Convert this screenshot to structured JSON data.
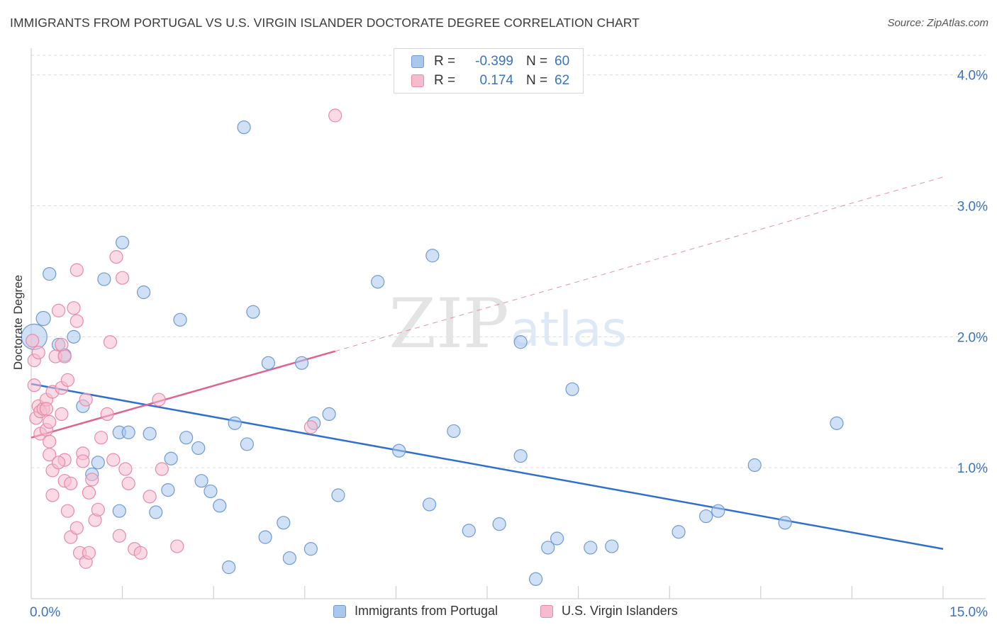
{
  "header": {
    "title": "IMMIGRANTS FROM PORTUGAL VS U.S. VIRGIN ISLANDER DOCTORATE DEGREE CORRELATION CHART",
    "source": "Source: ZipAtlas.com"
  },
  "watermark": {
    "zip": "ZIP",
    "atlas": "atlas"
  },
  "colors": {
    "blue_fill": "#aac8ee",
    "blue_stroke": "#6f9ad6",
    "blue_line": "#2f6fd0",
    "pink_fill": "#f6bccd",
    "pink_stroke": "#e98aa7",
    "pink_line": "#e0628d",
    "tick_label": "#3a73c4"
  },
  "legend_top": {
    "rows": [
      {
        "series": "blue",
        "r_label": "R =",
        "r_value": "-0.399",
        "n_label": "N =",
        "n_value": "60"
      },
      {
        "series": "pink",
        "r_label": "R =",
        "r_value": "0.174",
        "n_label": "N =",
        "n_value": "62"
      }
    ]
  },
  "chart_data": {
    "type": "scatter",
    "title": "IMMIGRANTS FROM PORTUGAL VS U.S. VIRGIN ISLANDER DOCTORATE DEGREE CORRELATION CHART",
    "xlabel": "",
    "ylabel": "Doctorate Degree",
    "xlim": [
      0,
      15
    ],
    "ylim": [
      0,
      4.15
    ],
    "x_tick_labels": [
      {
        "value": 0,
        "label": "0.0%"
      },
      {
        "value": 15,
        "label": "15.0%"
      }
    ],
    "y_tick_labels": [
      {
        "value": 1,
        "label": "1.0%"
      },
      {
        "value": 2,
        "label": "2.0%"
      },
      {
        "value": 3,
        "label": "3.0%"
      },
      {
        "value": 4,
        "label": "4.0%"
      }
    ],
    "x_minor_ticks": [
      1.5,
      3.0,
      4.5,
      6.0,
      7.5,
      9.0,
      10.5,
      12.0,
      13.5
    ],
    "grid": true,
    "legend_position": "bottom",
    "series": [
      {
        "name": "Immigrants from Portugal",
        "color": "blue",
        "trend": {
          "x": [
            0,
            15
          ],
          "y": [
            1.64,
            0.38
          ],
          "dashed_extension": false
        },
        "points": [
          [
            0.05,
            2.0,
            18
          ],
          [
            0.2,
            2.14,
            10
          ],
          [
            0.3,
            2.48,
            9
          ],
          [
            0.45,
            1.94,
            9
          ],
          [
            0.55,
            1.86,
            9
          ],
          [
            0.7,
            2.0,
            9
          ],
          [
            0.85,
            1.47,
            9
          ],
          [
            1.0,
            0.95,
            9
          ],
          [
            1.1,
            1.04,
            9
          ],
          [
            1.2,
            2.44,
            9
          ],
          [
            1.45,
            0.67,
            9
          ],
          [
            1.5,
            2.72,
            9
          ],
          [
            1.45,
            1.27,
            9
          ],
          [
            1.6,
            1.27,
            9
          ],
          [
            1.85,
            2.34,
            9
          ],
          [
            1.95,
            1.26,
            9
          ],
          [
            2.05,
            0.66,
            9
          ],
          [
            2.25,
            0.83,
            9
          ],
          [
            2.3,
            1.07,
            9
          ],
          [
            2.45,
            2.13,
            9
          ],
          [
            2.55,
            1.23,
            9
          ],
          [
            2.75,
            1.15,
            9
          ],
          [
            2.8,
            0.9,
            9
          ],
          [
            2.95,
            0.82,
            9
          ],
          [
            3.1,
            0.71,
            9
          ],
          [
            3.25,
            0.24,
            9
          ],
          [
            3.35,
            1.34,
            9
          ],
          [
            3.5,
            3.6,
            9
          ],
          [
            3.55,
            1.18,
            9
          ],
          [
            3.65,
            2.19,
            9
          ],
          [
            3.85,
            0.47,
            9
          ],
          [
            3.9,
            1.8,
            9
          ],
          [
            4.15,
            0.58,
            9
          ],
          [
            4.25,
            0.31,
            9
          ],
          [
            4.45,
            1.8,
            9
          ],
          [
            4.6,
            0.38,
            9
          ],
          [
            4.65,
            1.34,
            9
          ],
          [
            4.9,
            1.41,
            9
          ],
          [
            5.05,
            0.79,
            9
          ],
          [
            5.7,
            2.42,
            9
          ],
          [
            6.05,
            1.13,
            9
          ],
          [
            6.55,
            0.72,
            9
          ],
          [
            6.6,
            2.62,
            9
          ],
          [
            6.95,
            1.28,
            9
          ],
          [
            7.2,
            0.52,
            9
          ],
          [
            7.7,
            0.57,
            9
          ],
          [
            8.05,
            1.09,
            9
          ],
          [
            8.05,
            1.96,
            9
          ],
          [
            8.3,
            0.15,
            9
          ],
          [
            8.5,
            0.39,
            9
          ],
          [
            8.65,
            0.46,
            9
          ],
          [
            8.9,
            1.6,
            9
          ],
          [
            9.2,
            0.39,
            9
          ],
          [
            9.55,
            0.4,
            9
          ],
          [
            10.65,
            0.51,
            9
          ],
          [
            11.1,
            0.63,
            9
          ],
          [
            11.3,
            0.67,
            9
          ],
          [
            11.9,
            1.02,
            9
          ],
          [
            12.4,
            0.58,
            9
          ],
          [
            13.25,
            1.34,
            9
          ]
        ]
      },
      {
        "name": "U.S. Virgin Islanders",
        "color": "pink",
        "trend": {
          "x": [
            0,
            5.0,
            15
          ],
          "y": [
            1.23,
            1.89,
            3.22
          ],
          "dashed_extension": true
        },
        "points": [
          [
            0.02,
            1.97,
            9
          ],
          [
            0.05,
            1.82,
            9
          ],
          [
            0.05,
            1.63,
            9
          ],
          [
            0.08,
            1.38,
            9
          ],
          [
            0.12,
            1.88,
            9
          ],
          [
            0.12,
            1.47,
            9
          ],
          [
            0.15,
            1.43,
            9
          ],
          [
            0.15,
            1.26,
            9
          ],
          [
            0.2,
            1.45,
            9
          ],
          [
            0.25,
            1.29,
            9
          ],
          [
            0.25,
            1.52,
            9
          ],
          [
            0.3,
            1.35,
            9
          ],
          [
            0.3,
            1.2,
            9
          ],
          [
            0.3,
            1.1,
            9
          ],
          [
            0.35,
            1.58,
            9
          ],
          [
            0.35,
            0.98,
            9
          ],
          [
            0.35,
            0.79,
            9
          ],
          [
            0.4,
            1.85,
            9
          ],
          [
            0.45,
            2.2,
            9
          ],
          [
            0.5,
            1.94,
            9
          ],
          [
            0.5,
            1.41,
            9
          ],
          [
            0.5,
            1.61,
            9
          ],
          [
            0.55,
            0.9,
            9
          ],
          [
            0.55,
            1.06,
            9
          ],
          [
            0.6,
            0.67,
            9
          ],
          [
            0.6,
            1.67,
            9
          ],
          [
            0.65,
            0.47,
            9
          ],
          [
            0.65,
            0.88,
            9
          ],
          [
            0.7,
            2.22,
            9
          ],
          [
            0.75,
            2.51,
            9
          ],
          [
            0.75,
            2.12,
            9
          ],
          [
            0.75,
            0.54,
            9
          ],
          [
            0.8,
            0.35,
            9
          ],
          [
            0.85,
            1.11,
            9
          ],
          [
            0.85,
            1.05,
            9
          ],
          [
            0.9,
            0.28,
            9
          ],
          [
            0.9,
            1.52,
            9
          ],
          [
            0.95,
            0.81,
            9
          ],
          [
            0.95,
            0.35,
            9
          ],
          [
            1.0,
            0.91,
            9
          ],
          [
            1.05,
            0.6,
            9
          ],
          [
            1.1,
            0.68,
            9
          ],
          [
            1.15,
            1.23,
            9
          ],
          [
            1.25,
            1.41,
            9
          ],
          [
            1.3,
            1.96,
            9
          ],
          [
            1.35,
            1.06,
            9
          ],
          [
            1.4,
            2.61,
            9
          ],
          [
            1.45,
            0.48,
            9
          ],
          [
            1.5,
            2.45,
            9
          ],
          [
            1.55,
            0.99,
            9
          ],
          [
            1.6,
            0.88,
            9
          ],
          [
            1.7,
            0.38,
            9
          ],
          [
            1.8,
            0.35,
            9
          ],
          [
            1.95,
            0.78,
            9
          ],
          [
            2.1,
            1.52,
            9
          ],
          [
            2.15,
            0.99,
            9
          ],
          [
            2.4,
            0.4,
            9
          ],
          [
            4.6,
            1.31,
            9
          ],
          [
            5.0,
            3.69,
            9
          ],
          [
            0.25,
            1.45,
            9
          ],
          [
            0.45,
            1.04,
            9
          ],
          [
            0.55,
            1.85,
            9
          ]
        ]
      }
    ]
  },
  "legend_bottom": {
    "items": [
      {
        "series": "blue",
        "label": "Immigrants from Portugal"
      },
      {
        "series": "pink",
        "label": "U.S. Virgin Islanders"
      }
    ]
  }
}
